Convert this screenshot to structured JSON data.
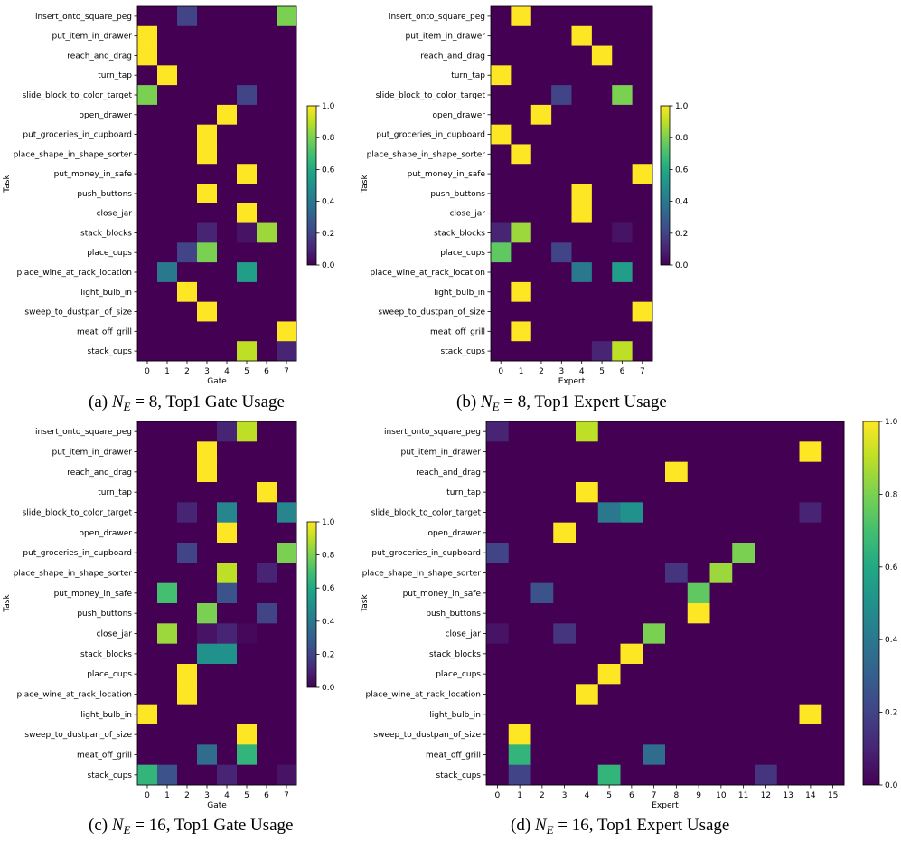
{
  "chart_data": [
    {
      "type": "heatmap",
      "panel": "a",
      "caption_prefix": "(a) ",
      "caption_math": "N",
      "caption_sub": "E",
      "caption_suffix": " = 8, Top1 Gate Usage",
      "xlabel": "Gate",
      "ylabel": "Task",
      "x_ticks": [
        "0",
        "1",
        "2",
        "3",
        "4",
        "5",
        "6",
        "7"
      ],
      "tasks": [
        "insert_onto_square_peg",
        "put_item_in_drawer",
        "reach_and_drag",
        "turn_tap",
        "slide_block_to_color_target",
        "open_drawer",
        "put_groceries_in_cupboard",
        "place_shape_in_shape_sorter",
        "put_money_in_safe",
        "push_buttons",
        "close_jar",
        "stack_blocks",
        "place_cups",
        "place_wine_at_rack_location",
        "light_bulb_in",
        "sweep_to_dustpan_of_size",
        "meat_off_grill",
        "stack_cups"
      ],
      "colorbar_ticks": [
        "0.0",
        "0.2",
        "0.4",
        "0.6",
        "0.8",
        "1.0"
      ],
      "vmin": 0,
      "vmax": 1,
      "values": [
        [
          0,
          0,
          0.2,
          0,
          0,
          0,
          0,
          0.8
        ],
        [
          1,
          0,
          0,
          0,
          0,
          0,
          0,
          0
        ],
        [
          1,
          0,
          0,
          0,
          0,
          0,
          0,
          0
        ],
        [
          0,
          1,
          0,
          0,
          0,
          0,
          0,
          0
        ],
        [
          0.8,
          0,
          0,
          0,
          0,
          0.2,
          0,
          0
        ],
        [
          0,
          0,
          0,
          0,
          1,
          0,
          0,
          0
        ],
        [
          0,
          0,
          0,
          1,
          0,
          0,
          0,
          0
        ],
        [
          0,
          0,
          0,
          1,
          0,
          0,
          0,
          0
        ],
        [
          0,
          0,
          0,
          0,
          0,
          1,
          0,
          0
        ],
        [
          0,
          0,
          0,
          1,
          0,
          0,
          0,
          0
        ],
        [
          0,
          0,
          0,
          0,
          0,
          1,
          0,
          0
        ],
        [
          0,
          0,
          0,
          0.1,
          0,
          0.05,
          0.85,
          0
        ],
        [
          0,
          0,
          0.2,
          0.8,
          0,
          0,
          0,
          0
        ],
        [
          0,
          0.4,
          0,
          0,
          0,
          0.55,
          0,
          0
        ],
        [
          0,
          0,
          1,
          0,
          0,
          0,
          0,
          0
        ],
        [
          0,
          0,
          0,
          1,
          0,
          0,
          0,
          0
        ],
        [
          0,
          0,
          0,
          0,
          0,
          0,
          0,
          1
        ],
        [
          0,
          0,
          0,
          0,
          0,
          0.9,
          0,
          0.1
        ]
      ]
    },
    {
      "type": "heatmap",
      "panel": "b",
      "caption_prefix": "(b) ",
      "caption_math": "N",
      "caption_sub": "E",
      "caption_suffix": " = 8, Top1 Expert Usage",
      "xlabel": "Expert",
      "ylabel": "Task",
      "x_ticks": [
        "0",
        "1",
        "2",
        "3",
        "4",
        "5",
        "6",
        "7"
      ],
      "tasks": [
        "insert_onto_square_peg",
        "put_item_in_drawer",
        "reach_and_drag",
        "turn_tap",
        "slide_block_to_color_target",
        "open_drawer",
        "put_groceries_in_cupboard",
        "place_shape_in_shape_sorter",
        "put_money_in_safe",
        "push_buttons",
        "close_jar",
        "stack_blocks",
        "place_cups",
        "place_wine_at_rack_location",
        "light_bulb_in",
        "sweep_to_dustpan_of_size",
        "meat_off_grill",
        "stack_cups"
      ],
      "colorbar_ticks": [
        "0.0",
        "0.2",
        "0.4",
        "0.6",
        "0.8",
        "1.0"
      ],
      "vmin": 0,
      "vmax": 1,
      "values": [
        [
          0,
          1,
          0,
          0,
          0,
          0,
          0,
          0
        ],
        [
          0,
          0,
          0,
          0,
          1,
          0,
          0,
          0
        ],
        [
          0,
          0,
          0,
          0,
          0,
          1,
          0,
          0
        ],
        [
          1,
          0,
          0,
          0,
          0,
          0,
          0,
          0
        ],
        [
          0,
          0,
          0,
          0.2,
          0,
          0,
          0.8,
          0
        ],
        [
          0,
          0,
          1,
          0,
          0,
          0,
          0,
          0
        ],
        [
          1,
          0,
          0,
          0,
          0,
          0,
          0,
          0
        ],
        [
          0,
          1,
          0,
          0,
          0,
          0,
          0,
          0
        ],
        [
          0,
          0,
          0,
          0,
          0,
          0,
          0,
          1
        ],
        [
          0,
          0,
          0,
          0,
          1,
          0,
          0,
          0
        ],
        [
          0,
          0,
          0,
          0,
          1,
          0,
          0,
          0
        ],
        [
          0.1,
          0.85,
          0,
          0,
          0,
          0,
          0.05,
          0
        ],
        [
          0.75,
          0,
          0,
          0.2,
          0,
          0,
          0,
          0
        ],
        [
          0,
          0,
          0,
          0,
          0.4,
          0,
          0.55,
          0
        ],
        [
          0,
          1,
          0,
          0,
          0,
          0,
          0,
          0
        ],
        [
          0,
          0,
          0,
          0,
          0,
          0,
          0,
          1
        ],
        [
          0,
          1,
          0,
          0,
          0,
          0,
          0,
          0
        ],
        [
          0,
          0,
          0,
          0,
          0,
          0.1,
          0.9,
          0
        ]
      ]
    },
    {
      "type": "heatmap",
      "panel": "c",
      "caption_prefix": "(c) ",
      "caption_math": "N",
      "caption_sub": "E",
      "caption_suffix": " = 16, Top1 Gate Usage",
      "xlabel": "Gate",
      "ylabel": "Task",
      "x_ticks": [
        "0",
        "1",
        "2",
        "3",
        "4",
        "5",
        "6",
        "7"
      ],
      "tasks": [
        "insert_onto_square_peg",
        "put_item_in_drawer",
        "reach_and_drag",
        "turn_tap",
        "slide_block_to_color_target",
        "open_drawer",
        "put_groceries_in_cupboard",
        "place_shape_in_shape_sorter",
        "put_money_in_safe",
        "push_buttons",
        "close_jar",
        "stack_blocks",
        "place_cups",
        "place_wine_at_rack_location",
        "light_bulb_in",
        "sweep_to_dustpan_of_size",
        "meat_off_grill",
        "stack_cups"
      ],
      "colorbar_ticks": [
        "0.0",
        "0.2",
        "0.4",
        "0.6",
        "0.8",
        "1.0"
      ],
      "vmin": 0,
      "vmax": 1,
      "values": [
        [
          0,
          0,
          0,
          0,
          0.1,
          0.9,
          0,
          0
        ],
        [
          0,
          0,
          0,
          1,
          0,
          0,
          0,
          0
        ],
        [
          0,
          0,
          0,
          1,
          0,
          0,
          0,
          0
        ],
        [
          0,
          0,
          0,
          0,
          0,
          0,
          1,
          0
        ],
        [
          0,
          0,
          0.1,
          0,
          0.45,
          0,
          0,
          0.45
        ],
        [
          0,
          0,
          0,
          0,
          1,
          0,
          0,
          0
        ],
        [
          0,
          0,
          0.2,
          0,
          0,
          0,
          0,
          0.8
        ],
        [
          0,
          0,
          0,
          0,
          0.9,
          0,
          0.1,
          0
        ],
        [
          0,
          0.7,
          0,
          0,
          0.25,
          0,
          0,
          0
        ],
        [
          0,
          0,
          0,
          0.8,
          0,
          0,
          0.2,
          0
        ],
        [
          0,
          0.85,
          0,
          0.05,
          0.1,
          0.02,
          0,
          0
        ],
        [
          0,
          0,
          0,
          0.5,
          0.5,
          0,
          0,
          0
        ],
        [
          0,
          0,
          1,
          0,
          0,
          0,
          0,
          0
        ],
        [
          0,
          0,
          1,
          0,
          0,
          0,
          0,
          0
        ],
        [
          1,
          0,
          0,
          0,
          0,
          0,
          0,
          0
        ],
        [
          0,
          0,
          0,
          0,
          0,
          1,
          0,
          0
        ],
        [
          0,
          0,
          0,
          0.35,
          0,
          0.65,
          0,
          0
        ],
        [
          0.65,
          0.25,
          0,
          0,
          0.1,
          0,
          0,
          0.05
        ]
      ]
    },
    {
      "type": "heatmap",
      "panel": "d",
      "caption_prefix": "(d) ",
      "caption_math": "N",
      "caption_sub": "E",
      "caption_suffix": " = 16, Top1 Expert Usage",
      "xlabel": "Expert",
      "ylabel": "Task",
      "x_ticks": [
        "0",
        "1",
        "2",
        "3",
        "4",
        "5",
        "6",
        "7",
        "8",
        "9",
        "10",
        "11",
        "12",
        "13",
        "14",
        "15"
      ],
      "tasks": [
        "insert_onto_square_peg",
        "put_item_in_drawer",
        "reach_and_drag",
        "turn_tap",
        "slide_block_to_color_target",
        "open_drawer",
        "put_groceries_in_cupboard",
        "place_shape_in_shape_sorter",
        "put_money_in_safe",
        "push_buttons",
        "close_jar",
        "stack_blocks",
        "place_cups",
        "place_wine_at_rack_location",
        "light_bulb_in",
        "sweep_to_dustpan_of_size",
        "meat_off_grill",
        "stack_cups"
      ],
      "colorbar_ticks": [
        "0.0",
        "0.2",
        "0.4",
        "0.6",
        "0.8",
        "1.0"
      ],
      "vmin": 0,
      "vmax": 1,
      "values": [
        [
          0.1,
          0,
          0,
          0,
          0.9,
          0,
          0,
          0,
          0,
          0,
          0,
          0,
          0,
          0,
          0,
          0
        ],
        [
          0,
          0,
          0,
          0,
          0,
          0,
          0,
          0,
          0,
          0,
          0,
          0,
          0,
          0,
          1,
          0
        ],
        [
          0,
          0,
          0,
          0,
          0,
          0,
          0,
          0,
          1,
          0,
          0,
          0,
          0,
          0,
          0,
          0
        ],
        [
          0,
          0,
          0,
          0,
          1,
          0,
          0,
          0,
          0,
          0,
          0,
          0,
          0,
          0,
          0,
          0
        ],
        [
          0,
          0,
          0,
          0,
          0,
          0.4,
          0.5,
          0,
          0,
          0,
          0,
          0,
          0,
          0,
          0.1,
          0
        ],
        [
          0,
          0,
          0,
          1,
          0,
          0,
          0,
          0,
          0,
          0,
          0,
          0,
          0,
          0,
          0,
          0
        ],
        [
          0.2,
          0,
          0,
          0,
          0,
          0,
          0,
          0,
          0,
          0,
          0,
          0.8,
          0,
          0,
          0,
          0
        ],
        [
          0,
          0,
          0,
          0,
          0,
          0,
          0,
          0,
          0.15,
          0,
          0.85,
          0,
          0,
          0,
          0,
          0
        ],
        [
          0,
          0,
          0.25,
          0,
          0,
          0,
          0,
          0,
          0,
          0.75,
          0,
          0,
          0,
          0,
          0,
          0
        ],
        [
          0,
          0,
          0,
          0,
          0,
          0,
          0,
          0,
          0,
          1,
          0,
          0,
          0,
          0,
          0,
          0
        ],
        [
          0.05,
          0,
          0,
          0.15,
          0,
          0,
          0,
          0.8,
          0,
          0,
          0,
          0,
          0,
          0,
          0,
          0
        ],
        [
          0,
          0,
          0,
          0,
          0,
          0,
          1,
          0,
          0,
          0,
          0,
          0,
          0,
          0,
          0,
          0
        ],
        [
          0,
          0,
          0,
          0,
          0,
          1,
          0,
          0,
          0,
          0,
          0,
          0,
          0,
          0,
          0,
          0
        ],
        [
          0,
          0,
          0,
          0,
          1,
          0,
          0,
          0,
          0,
          0,
          0,
          0,
          0,
          0,
          0,
          0
        ],
        [
          0,
          0,
          0,
          0,
          0,
          0,
          0,
          0,
          0,
          0,
          0,
          0,
          0,
          0,
          1,
          0
        ],
        [
          0,
          1,
          0,
          0,
          0,
          0,
          0,
          0,
          0,
          0,
          0,
          0,
          0,
          0,
          0,
          0
        ],
        [
          0,
          0.65,
          0,
          0,
          0,
          0,
          0,
          0.35,
          0,
          0,
          0,
          0,
          0,
          0,
          0,
          0
        ],
        [
          0,
          0.2,
          0,
          0,
          0,
          0.65,
          0,
          0,
          0,
          0,
          0,
          0,
          0.15,
          0,
          0,
          0
        ]
      ]
    }
  ]
}
